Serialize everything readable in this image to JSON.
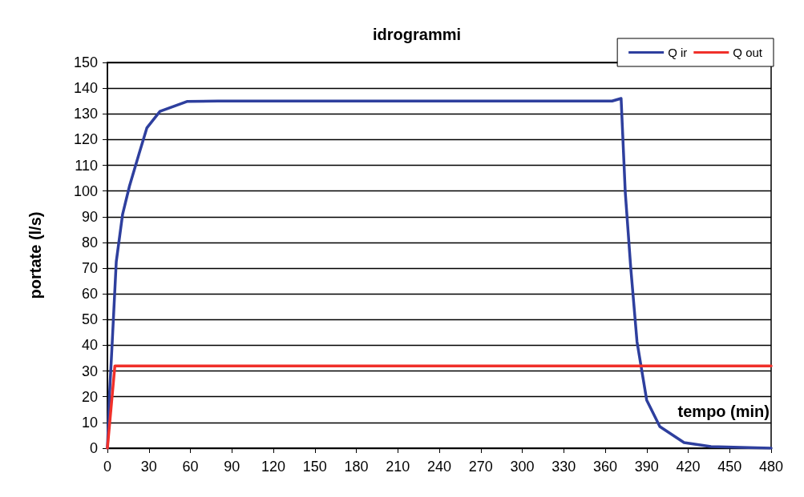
{
  "chart_data": {
    "type": "line",
    "title": "idrogrammi",
    "xlabel": "tempo (min)",
    "ylabel": "portate (l/s)",
    "xlim": [
      0,
      480
    ],
    "xticks": [
      0,
      30,
      60,
      90,
      120,
      150,
      180,
      210,
      240,
      270,
      300,
      330,
      360,
      390,
      420,
      450,
      480
    ],
    "ylim": [
      0,
      150
    ],
    "yticks": [
      0,
      10,
      20,
      30,
      40,
      50,
      60,
      70,
      80,
      90,
      100,
      110,
      120,
      130,
      140,
      150
    ],
    "grid": "y",
    "legend": "top right",
    "marker": "none",
    "line_style": "solid",
    "series": [
      {
        "name": "Q ir",
        "color": "#2e3f9e",
        "x": [
          0,
          1.5,
          3.5,
          6.4,
          11,
          16,
          22.6,
          28.5,
          38,
          57.5,
          80,
          200,
          365,
          371.5,
          374.5,
          378.4,
          383,
          390,
          399.5,
          417,
          436.5,
          480
        ],
        "values": [
          0,
          20.8,
          41.4,
          72.5,
          91,
          102,
          114,
          124.5,
          131,
          134.8,
          135,
          135,
          135,
          136,
          99.6,
          70.6,
          41.4,
          18.7,
          8.4,
          2.2,
          0.6,
          0
        ]
      },
      {
        "name": "Q out",
        "color": "#f0302a",
        "x": [
          0,
          5.4,
          480
        ],
        "values": [
          0,
          32,
          32
        ]
      }
    ]
  }
}
